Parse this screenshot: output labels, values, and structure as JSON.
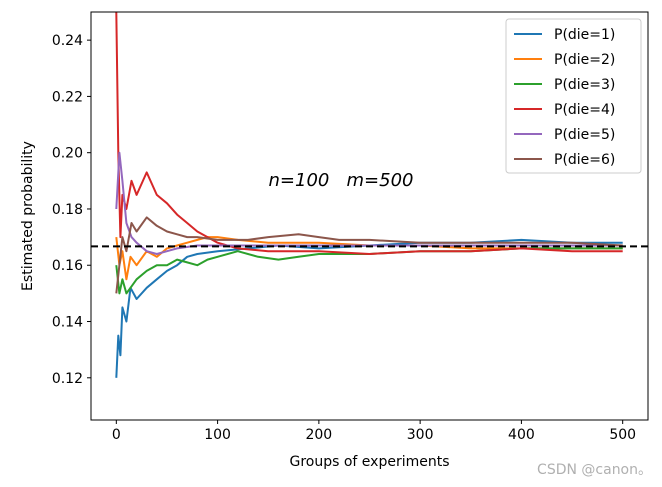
{
  "chart_data": {
    "type": "line",
    "xlabel": "Groups of experiments",
    "ylabel": "Estimated probability",
    "xlim": [
      -25,
      525
    ],
    "ylim": [
      0.105,
      0.25
    ],
    "xticks": [
      0,
      100,
      200,
      300,
      400,
      500
    ],
    "yticks": [
      0.12,
      0.14,
      0.16,
      0.18,
      0.2,
      0.22,
      0.24
    ],
    "grid": false,
    "legend_position": "upper-right",
    "reference_line": {
      "y": 0.1667,
      "style": "dashed",
      "color": "#000000"
    },
    "annotation": "n=100   m=500",
    "watermark": "CSDN @canon。",
    "series": [
      {
        "name": "P(die=1)",
        "color": "#1f77b4",
        "points": [
          [
            0,
            0.12
          ],
          [
            2,
            0.135
          ],
          [
            4,
            0.128
          ],
          [
            6,
            0.145
          ],
          [
            10,
            0.14
          ],
          [
            14,
            0.152
          ],
          [
            20,
            0.148
          ],
          [
            30,
            0.152
          ],
          [
            40,
            0.155
          ],
          [
            50,
            0.158
          ],
          [
            60,
            0.16
          ],
          [
            70,
            0.163
          ],
          [
            80,
            0.164
          ],
          [
            100,
            0.165
          ],
          [
            130,
            0.166
          ],
          [
            160,
            0.167
          ],
          [
            200,
            0.166
          ],
          [
            250,
            0.167
          ],
          [
            300,
            0.168
          ],
          [
            350,
            0.168
          ],
          [
            400,
            0.169
          ],
          [
            450,
            0.168
          ],
          [
            500,
            0.168
          ]
        ]
      },
      {
        "name": "P(die=2)",
        "color": "#ff7f0e",
        "points": [
          [
            0,
            0.17
          ],
          [
            3,
            0.16
          ],
          [
            6,
            0.165
          ],
          [
            10,
            0.155
          ],
          [
            14,
            0.163
          ],
          [
            20,
            0.16
          ],
          [
            30,
            0.165
          ],
          [
            40,
            0.163
          ],
          [
            50,
            0.166
          ],
          [
            60,
            0.167
          ],
          [
            70,
            0.168
          ],
          [
            80,
            0.169
          ],
          [
            90,
            0.17
          ],
          [
            100,
            0.17
          ],
          [
            120,
            0.169
          ],
          [
            150,
            0.168
          ],
          [
            180,
            0.168
          ],
          [
            200,
            0.168
          ],
          [
            250,
            0.167
          ],
          [
            300,
            0.167
          ],
          [
            350,
            0.166
          ],
          [
            400,
            0.166
          ],
          [
            450,
            0.166
          ],
          [
            500,
            0.166
          ]
        ]
      },
      {
        "name": "P(die=3)",
        "color": "#2ca02c",
        "points": [
          [
            0,
            0.16
          ],
          [
            3,
            0.15
          ],
          [
            6,
            0.155
          ],
          [
            10,
            0.15
          ],
          [
            14,
            0.152
          ],
          [
            20,
            0.155
          ],
          [
            30,
            0.158
          ],
          [
            40,
            0.16
          ],
          [
            50,
            0.16
          ],
          [
            60,
            0.162
          ],
          [
            70,
            0.161
          ],
          [
            80,
            0.16
          ],
          [
            90,
            0.162
          ],
          [
            100,
            0.163
          ],
          [
            120,
            0.165
          ],
          [
            140,
            0.163
          ],
          [
            160,
            0.162
          ],
          [
            180,
            0.163
          ],
          [
            200,
            0.164
          ],
          [
            250,
            0.164
          ],
          [
            300,
            0.165
          ],
          [
            350,
            0.165
          ],
          [
            400,
            0.166
          ],
          [
            450,
            0.166
          ],
          [
            500,
            0.166
          ]
        ]
      },
      {
        "name": "P(die=4)",
        "color": "#d62728",
        "points": [
          [
            0,
            0.25
          ],
          [
            2,
            0.2
          ],
          [
            4,
            0.17
          ],
          [
            6,
            0.185
          ],
          [
            10,
            0.18
          ],
          [
            15,
            0.19
          ],
          [
            20,
            0.185
          ],
          [
            30,
            0.193
          ],
          [
            40,
            0.185
          ],
          [
            50,
            0.182
          ],
          [
            60,
            0.178
          ],
          [
            70,
            0.175
          ],
          [
            80,
            0.172
          ],
          [
            90,
            0.17
          ],
          [
            100,
            0.168
          ],
          [
            120,
            0.166
          ],
          [
            150,
            0.165
          ],
          [
            200,
            0.165
          ],
          [
            250,
            0.164
          ],
          [
            300,
            0.165
          ],
          [
            350,
            0.165
          ],
          [
            400,
            0.166
          ],
          [
            450,
            0.165
          ],
          [
            500,
            0.165
          ]
        ]
      },
      {
        "name": "P(die=5)",
        "color": "#9467bd",
        "points": [
          [
            0,
            0.18
          ],
          [
            3,
            0.2
          ],
          [
            6,
            0.19
          ],
          [
            10,
            0.175
          ],
          [
            15,
            0.17
          ],
          [
            20,
            0.168
          ],
          [
            30,
            0.165
          ],
          [
            40,
            0.164
          ],
          [
            50,
            0.165
          ],
          [
            60,
            0.166
          ],
          [
            80,
            0.167
          ],
          [
            100,
            0.167
          ],
          [
            130,
            0.167
          ],
          [
            160,
            0.167
          ],
          [
            200,
            0.167
          ],
          [
            250,
            0.167
          ],
          [
            300,
            0.167
          ],
          [
            350,
            0.167
          ],
          [
            400,
            0.167
          ],
          [
            450,
            0.167
          ],
          [
            500,
            0.167
          ]
        ]
      },
      {
        "name": "P(die=6)",
        "color": "#8c564b",
        "points": [
          [
            0,
            0.15
          ],
          [
            3,
            0.16
          ],
          [
            6,
            0.17
          ],
          [
            10,
            0.165
          ],
          [
            15,
            0.175
          ],
          [
            20,
            0.172
          ],
          [
            30,
            0.177
          ],
          [
            40,
            0.174
          ],
          [
            50,
            0.172
          ],
          [
            60,
            0.171
          ],
          [
            70,
            0.17
          ],
          [
            80,
            0.17
          ],
          [
            100,
            0.169
          ],
          [
            130,
            0.169
          ],
          [
            150,
            0.17
          ],
          [
            180,
            0.171
          ],
          [
            200,
            0.17
          ],
          [
            220,
            0.169
          ],
          [
            250,
            0.169
          ],
          [
            300,
            0.168
          ],
          [
            350,
            0.168
          ],
          [
            400,
            0.168
          ],
          [
            450,
            0.168
          ],
          [
            500,
            0.167
          ]
        ]
      }
    ]
  }
}
